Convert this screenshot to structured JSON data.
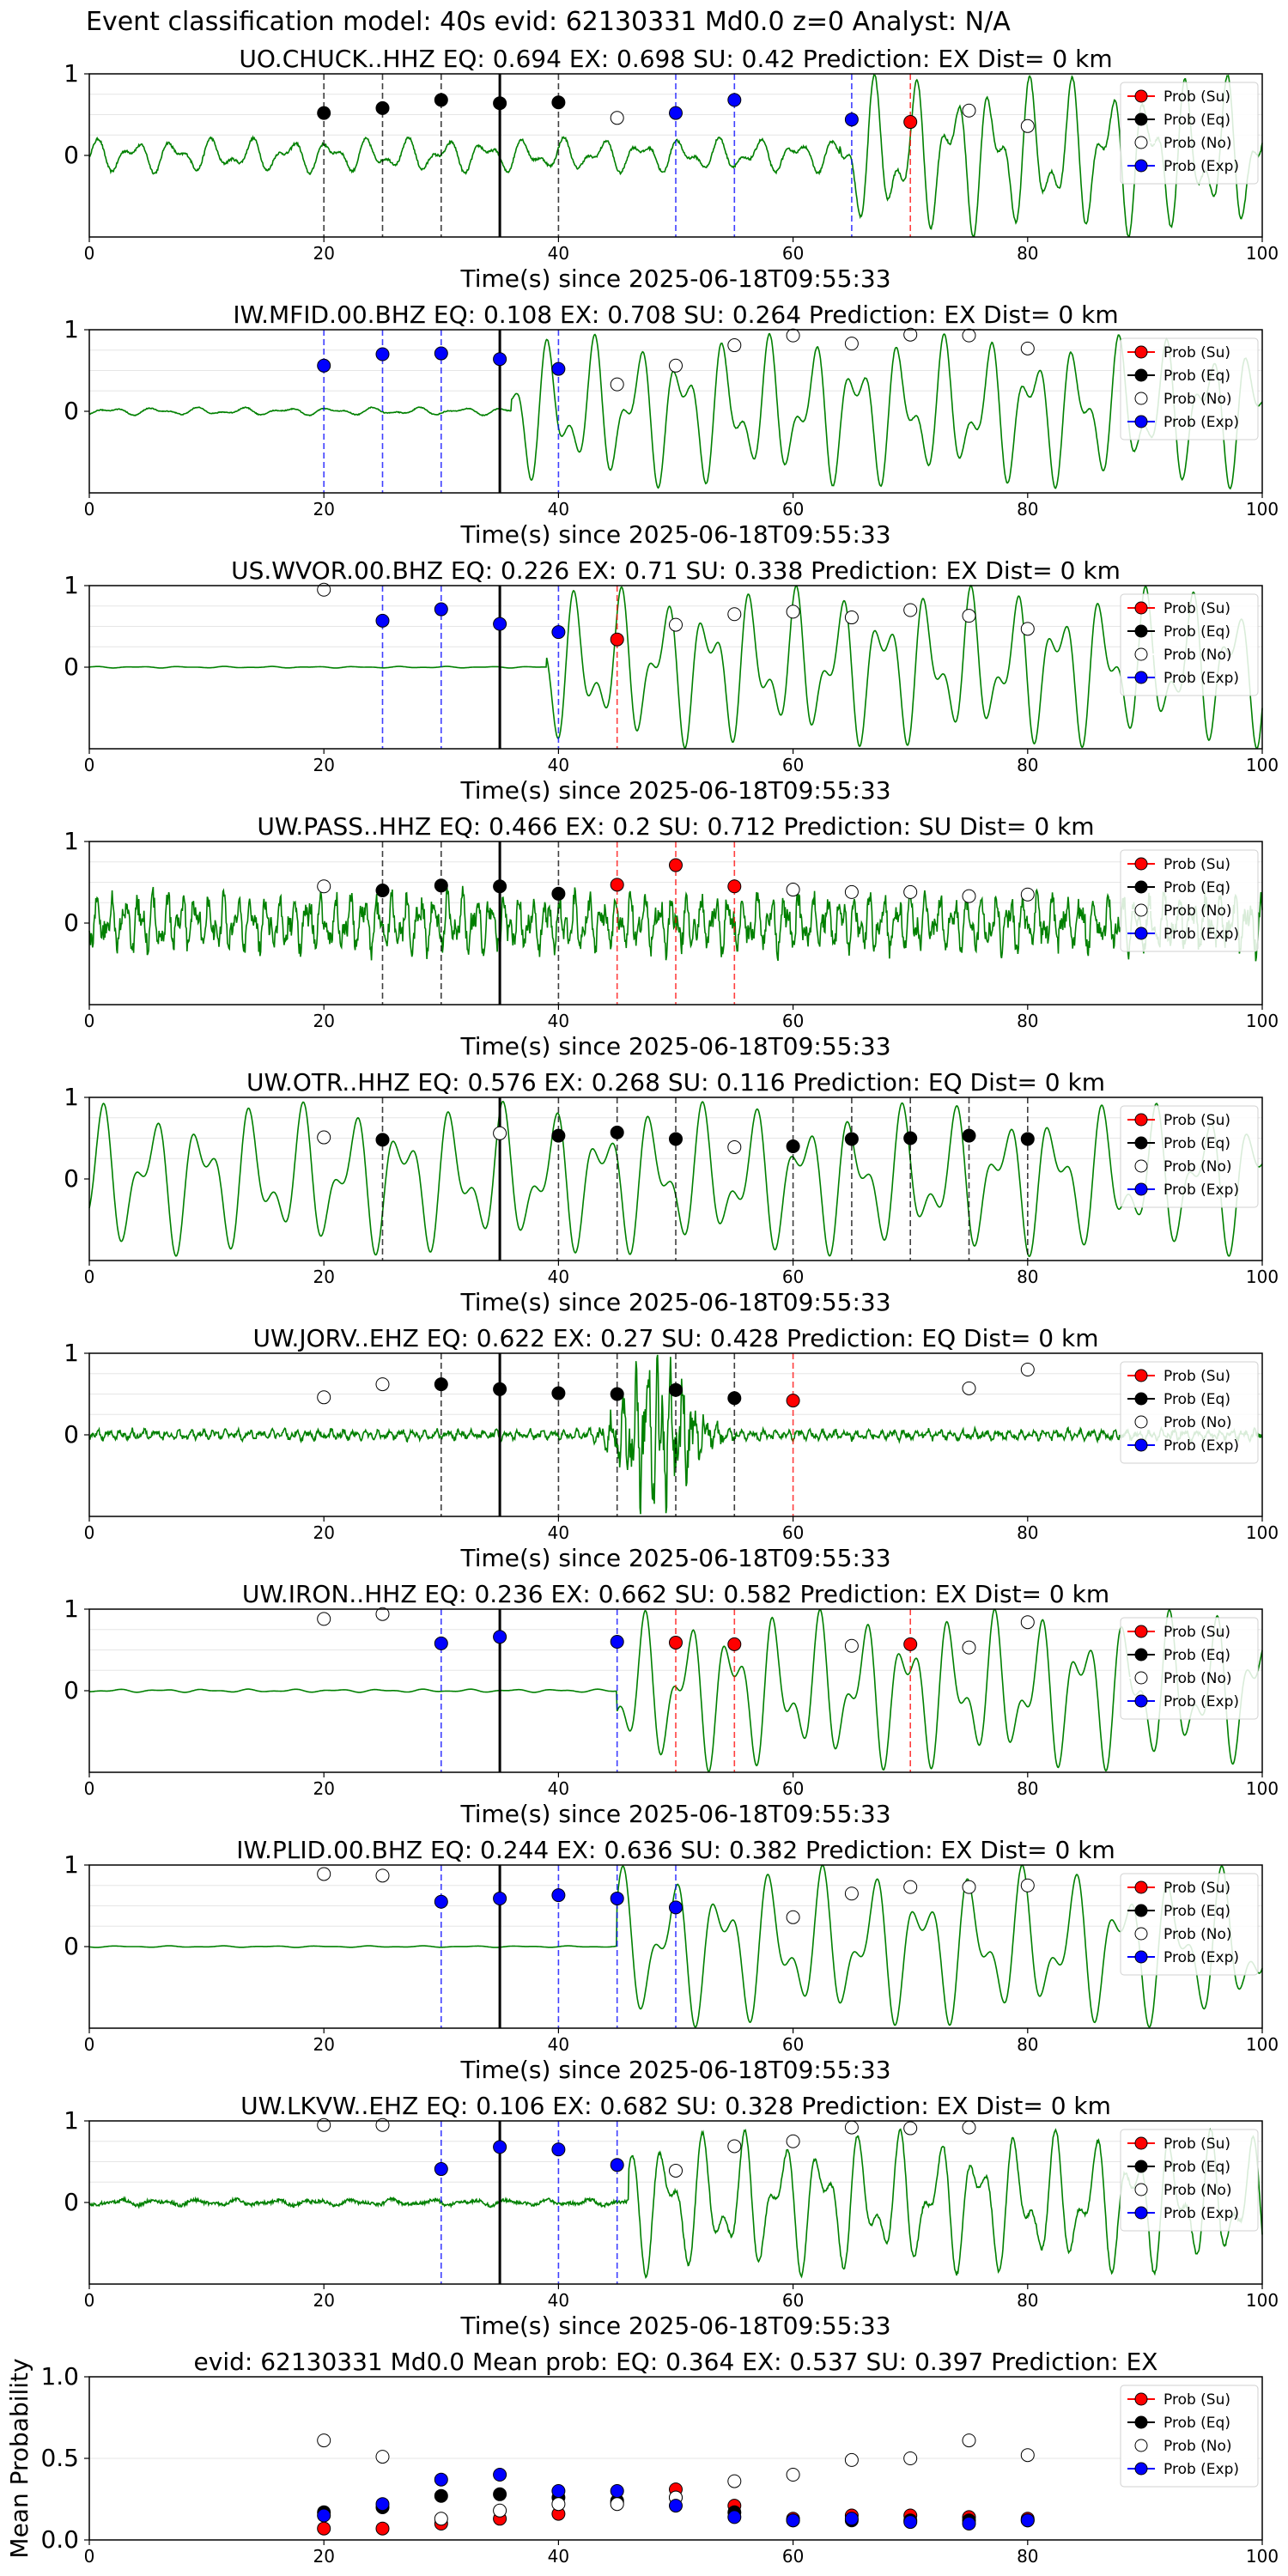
{
  "suptitle": "Event classification model: 40s evid: 62130331 Md0.0 z=0 Analyst: N/A",
  "legend": [
    "Prob (Su)",
    "Prob (Eq)",
    "Prob (No)",
    "Prob (Exp)"
  ],
  "colors": {
    "su": "#ff0000",
    "eq": "#000000",
    "no": "#ffffff",
    "exp": "#0000ff",
    "trace": "#008000",
    "arrival": "#000000"
  },
  "chart_data": [
    {
      "type": "line",
      "title": "UO.CHUCK..HHZ   EQ: 0.694  EX: 0.698  SU: 0.42   Prediction: EX    Dist= 0 km",
      "xlabel": "Time(s) since 2025-06-18T09:55:33",
      "xlim": [
        0,
        100
      ],
      "ylim": [
        -1,
        1
      ],
      "yticks": [
        0,
        1
      ],
      "xticks": [
        0,
        20,
        40,
        60,
        80,
        100
      ],
      "arrival_x": 35,
      "points": [
        {
          "x": 20,
          "y": 0.52,
          "cls": "eq"
        },
        {
          "x": 25,
          "y": 0.58,
          "cls": "eq"
        },
        {
          "x": 30,
          "y": 0.68,
          "cls": "eq"
        },
        {
          "x": 35,
          "y": 0.64,
          "cls": "eq"
        },
        {
          "x": 40,
          "y": 0.65,
          "cls": "eq"
        },
        {
          "x": 45,
          "y": 0.46,
          "cls": "no"
        },
        {
          "x": 50,
          "y": 0.52,
          "cls": "exp"
        },
        {
          "x": 55,
          "y": 0.68,
          "cls": "exp"
        },
        {
          "x": 65,
          "y": 0.44,
          "cls": "exp"
        },
        {
          "x": 70,
          "y": 0.41,
          "cls": "su"
        },
        {
          "x": 75,
          "y": 0.55,
          "cls": "no"
        },
        {
          "x": 80,
          "y": 0.36,
          "cls": "no"
        }
      ]
    },
    {
      "type": "line",
      "title": "IW.MFID.00.BHZ   EQ: 0.108  EX: 0.708  SU: 0.264   Prediction: EX    Dist= 0 km",
      "xlabel": "Time(s) since 2025-06-18T09:55:33",
      "xlim": [
        0,
        100
      ],
      "ylim": [
        -1,
        1
      ],
      "yticks": [
        0,
        1
      ],
      "xticks": [
        0,
        20,
        40,
        60,
        80,
        100
      ],
      "arrival_x": 35,
      "points": [
        {
          "x": 20,
          "y": 0.56,
          "cls": "exp"
        },
        {
          "x": 25,
          "y": 0.7,
          "cls": "exp"
        },
        {
          "x": 30,
          "y": 0.71,
          "cls": "exp"
        },
        {
          "x": 35,
          "y": 0.64,
          "cls": "exp"
        },
        {
          "x": 40,
          "y": 0.52,
          "cls": "exp"
        },
        {
          "x": 45,
          "y": 0.33,
          "cls": "no"
        },
        {
          "x": 50,
          "y": 0.56,
          "cls": "no"
        },
        {
          "x": 55,
          "y": 0.81,
          "cls": "no"
        },
        {
          "x": 60,
          "y": 0.93,
          "cls": "no"
        },
        {
          "x": 65,
          "y": 0.83,
          "cls": "no"
        },
        {
          "x": 70,
          "y": 0.94,
          "cls": "no"
        },
        {
          "x": 75,
          "y": 0.93,
          "cls": "no"
        },
        {
          "x": 80,
          "y": 0.77,
          "cls": "no"
        }
      ]
    },
    {
      "type": "line",
      "title": "US.WVOR.00.BHZ   EQ: 0.226  EX: 0.71  SU: 0.338   Prediction: EX    Dist= 0 km",
      "xlabel": "Time(s) since 2025-06-18T09:55:33",
      "xlim": [
        0,
        100
      ],
      "ylim": [
        -1,
        1
      ],
      "yticks": [
        0,
        1
      ],
      "xticks": [
        0,
        20,
        40,
        60,
        80,
        100
      ],
      "arrival_x": 35,
      "points": [
        {
          "x": 20,
          "y": 0.95,
          "cls": "no"
        },
        {
          "x": 25,
          "y": 0.57,
          "cls": "exp"
        },
        {
          "x": 30,
          "y": 0.71,
          "cls": "exp"
        },
        {
          "x": 35,
          "y": 0.53,
          "cls": "exp"
        },
        {
          "x": 40,
          "y": 0.43,
          "cls": "exp"
        },
        {
          "x": 45,
          "y": 0.34,
          "cls": "su"
        },
        {
          "x": 50,
          "y": 0.52,
          "cls": "no"
        },
        {
          "x": 55,
          "y": 0.65,
          "cls": "no"
        },
        {
          "x": 60,
          "y": 0.68,
          "cls": "no"
        },
        {
          "x": 65,
          "y": 0.61,
          "cls": "no"
        },
        {
          "x": 70,
          "y": 0.7,
          "cls": "no"
        },
        {
          "x": 75,
          "y": 0.63,
          "cls": "no"
        },
        {
          "x": 80,
          "y": 0.47,
          "cls": "no"
        }
      ]
    },
    {
      "type": "line",
      "title": "UW.PASS..HHZ   EQ: 0.466  EX: 0.2  SU: 0.712   Prediction: SU    Dist= 0 km",
      "xlabel": "Time(s) since 2025-06-18T09:55:33",
      "xlim": [
        0,
        100
      ],
      "ylim": [
        -1,
        1
      ],
      "yticks": [
        0,
        1
      ],
      "xticks": [
        0,
        20,
        40,
        60,
        80,
        100
      ],
      "arrival_x": 35,
      "points": [
        {
          "x": 20,
          "y": 0.45,
          "cls": "no"
        },
        {
          "x": 25,
          "y": 0.4,
          "cls": "eq"
        },
        {
          "x": 30,
          "y": 0.46,
          "cls": "eq"
        },
        {
          "x": 35,
          "y": 0.45,
          "cls": "eq"
        },
        {
          "x": 40,
          "y": 0.36,
          "cls": "eq"
        },
        {
          "x": 45,
          "y": 0.47,
          "cls": "su"
        },
        {
          "x": 50,
          "y": 0.71,
          "cls": "su"
        },
        {
          "x": 55,
          "y": 0.45,
          "cls": "su"
        },
        {
          "x": 60,
          "y": 0.41,
          "cls": "no"
        },
        {
          "x": 65,
          "y": 0.38,
          "cls": "no"
        },
        {
          "x": 70,
          "y": 0.38,
          "cls": "no"
        },
        {
          "x": 75,
          "y": 0.33,
          "cls": "no"
        },
        {
          "x": 80,
          "y": 0.35,
          "cls": "no"
        }
      ]
    },
    {
      "type": "line",
      "title": "UW.OTR..HHZ   EQ: 0.576  EX: 0.268  SU: 0.116   Prediction: EQ    Dist= 0 km",
      "xlabel": "Time(s) since 2025-06-18T09:55:33",
      "xlim": [
        0,
        100
      ],
      "ylim": [
        -1,
        1
      ],
      "yticks": [
        0,
        1
      ],
      "xticks": [
        0,
        20,
        40,
        60,
        80,
        100
      ],
      "arrival_x": 35,
      "points": [
        {
          "x": 20,
          "y": 0.51,
          "cls": "no"
        },
        {
          "x": 25,
          "y": 0.48,
          "cls": "eq"
        },
        {
          "x": 35,
          "y": 0.56,
          "cls": "no"
        },
        {
          "x": 40,
          "y": 0.53,
          "cls": "eq"
        },
        {
          "x": 45,
          "y": 0.57,
          "cls": "eq"
        },
        {
          "x": 50,
          "y": 0.49,
          "cls": "eq"
        },
        {
          "x": 55,
          "y": 0.39,
          "cls": "no"
        },
        {
          "x": 60,
          "y": 0.4,
          "cls": "eq"
        },
        {
          "x": 65,
          "y": 0.49,
          "cls": "eq"
        },
        {
          "x": 70,
          "y": 0.5,
          "cls": "eq"
        },
        {
          "x": 75,
          "y": 0.53,
          "cls": "eq"
        },
        {
          "x": 80,
          "y": 0.49,
          "cls": "eq"
        }
      ]
    },
    {
      "type": "line",
      "title": "UW.JORV..EHZ   EQ: 0.622  EX: 0.27  SU: 0.428   Prediction: EQ    Dist= 0 km",
      "xlabel": "Time(s) since 2025-06-18T09:55:33",
      "xlim": [
        0,
        100
      ],
      "ylim": [
        -1,
        1
      ],
      "yticks": [
        0,
        1
      ],
      "xticks": [
        0,
        20,
        40,
        60,
        80,
        100
      ],
      "arrival_x": 35,
      "points": [
        {
          "x": 20,
          "y": 0.46,
          "cls": "no"
        },
        {
          "x": 25,
          "y": 0.62,
          "cls": "no"
        },
        {
          "x": 30,
          "y": 0.62,
          "cls": "eq"
        },
        {
          "x": 35,
          "y": 0.56,
          "cls": "eq"
        },
        {
          "x": 40,
          "y": 0.51,
          "cls": "eq"
        },
        {
          "x": 45,
          "y": 0.5,
          "cls": "eq"
        },
        {
          "x": 50,
          "y": 0.55,
          "cls": "eq"
        },
        {
          "x": 55,
          "y": 0.45,
          "cls": "eq"
        },
        {
          "x": 60,
          "y": 0.42,
          "cls": "su"
        },
        {
          "x": 75,
          "y": 0.57,
          "cls": "no"
        },
        {
          "x": 80,
          "y": 0.8,
          "cls": "no"
        }
      ]
    },
    {
      "type": "line",
      "title": "UW.IRON..HHZ   EQ: 0.236  EX: 0.662  SU: 0.582   Prediction: EX    Dist= 0 km",
      "xlabel": "Time(s) since 2025-06-18T09:55:33",
      "xlim": [
        0,
        100
      ],
      "ylim": [
        -1,
        1
      ],
      "yticks": [
        0,
        1
      ],
      "xticks": [
        0,
        20,
        40,
        60,
        80,
        100
      ],
      "arrival_x": 35,
      "points": [
        {
          "x": 20,
          "y": 0.88,
          "cls": "no"
        },
        {
          "x": 25,
          "y": 0.94,
          "cls": "no"
        },
        {
          "x": 30,
          "y": 0.58,
          "cls": "exp"
        },
        {
          "x": 35,
          "y": 0.66,
          "cls": "exp"
        },
        {
          "x": 45,
          "y": 0.6,
          "cls": "exp"
        },
        {
          "x": 50,
          "y": 0.59,
          "cls": "su"
        },
        {
          "x": 55,
          "y": 0.57,
          "cls": "su"
        },
        {
          "x": 65,
          "y": 0.55,
          "cls": "no"
        },
        {
          "x": 70,
          "y": 0.57,
          "cls": "su"
        },
        {
          "x": 75,
          "y": 0.53,
          "cls": "no"
        },
        {
          "x": 80,
          "y": 0.84,
          "cls": "no"
        }
      ]
    },
    {
      "type": "line",
      "title": "IW.PLID.00.BHZ   EQ: 0.244  EX: 0.636  SU: 0.382   Prediction: EX    Dist= 0 km",
      "xlabel": "Time(s) since 2025-06-18T09:55:33",
      "xlim": [
        0,
        100
      ],
      "ylim": [
        -1,
        1
      ],
      "yticks": [
        0,
        1
      ],
      "xticks": [
        0,
        20,
        40,
        60,
        80,
        100
      ],
      "arrival_x": 35,
      "points": [
        {
          "x": 20,
          "y": 0.89,
          "cls": "no"
        },
        {
          "x": 25,
          "y": 0.87,
          "cls": "no"
        },
        {
          "x": 30,
          "y": 0.55,
          "cls": "exp"
        },
        {
          "x": 35,
          "y": 0.59,
          "cls": "exp"
        },
        {
          "x": 40,
          "y": 0.63,
          "cls": "exp"
        },
        {
          "x": 45,
          "y": 0.59,
          "cls": "exp"
        },
        {
          "x": 50,
          "y": 0.48,
          "cls": "exp"
        },
        {
          "x": 60,
          "y": 0.36,
          "cls": "no"
        },
        {
          "x": 65,
          "y": 0.65,
          "cls": "no"
        },
        {
          "x": 70,
          "y": 0.73,
          "cls": "no"
        },
        {
          "x": 75,
          "y": 0.73,
          "cls": "no"
        },
        {
          "x": 80,
          "y": 0.75,
          "cls": "no"
        }
      ]
    },
    {
      "type": "line",
      "title": "UW.LKVW..EHZ   EQ: 0.106  EX: 0.682  SU: 0.328   Prediction: EX    Dist= 0 km",
      "xlabel": "Time(s) since 2025-06-18T09:55:33",
      "xlim": [
        0,
        100
      ],
      "ylim": [
        -1,
        1
      ],
      "yticks": [
        0,
        1
      ],
      "xticks": [
        0,
        20,
        40,
        60,
        80,
        100
      ],
      "arrival_x": 35,
      "points": [
        {
          "x": 20,
          "y": 0.95,
          "cls": "no"
        },
        {
          "x": 25,
          "y": 0.95,
          "cls": "no"
        },
        {
          "x": 30,
          "y": 0.41,
          "cls": "exp"
        },
        {
          "x": 35,
          "y": 0.68,
          "cls": "exp"
        },
        {
          "x": 40,
          "y": 0.65,
          "cls": "exp"
        },
        {
          "x": 45,
          "y": 0.46,
          "cls": "exp"
        },
        {
          "x": 50,
          "y": 0.39,
          "cls": "no"
        },
        {
          "x": 55,
          "y": 0.69,
          "cls": "no"
        },
        {
          "x": 60,
          "y": 0.75,
          "cls": "no"
        },
        {
          "x": 65,
          "y": 0.92,
          "cls": "no"
        },
        {
          "x": 70,
          "y": 0.91,
          "cls": "no"
        },
        {
          "x": 75,
          "y": 0.92,
          "cls": "no"
        }
      ]
    },
    {
      "type": "scatter",
      "title": "evid: 62130331  Md0.0   Mean prob:   EQ: 0.364  EX: 0.537  SU: 0.397   Prediction: EX",
      "ylabel": "Mean Probability",
      "xlim": [
        0,
        100
      ],
      "ylim": [
        0,
        1
      ],
      "yticks": [
        0,
        0.5,
        1
      ],
      "ytick_labels": [
        "0.0",
        "0.5",
        "1.0"
      ],
      "xticks": [
        0,
        20,
        40,
        60,
        80,
        100
      ],
      "x": [
        20,
        25,
        30,
        35,
        40,
        45,
        50,
        55,
        60,
        65,
        70,
        75,
        80
      ],
      "series": [
        {
          "name": "Prob (Su)",
          "cls": "su",
          "values": [
            0.07,
            0.07,
            0.1,
            0.13,
            0.16,
            0.23,
            0.31,
            0.21,
            0.13,
            0.15,
            0.15,
            0.14,
            0.13
          ]
        },
        {
          "name": "Prob (Eq)",
          "cls": "eq",
          "values": [
            0.17,
            0.2,
            0.27,
            0.28,
            0.26,
            0.24,
            0.26,
            0.17,
            0.12,
            0.12,
            0.12,
            0.12,
            0.12
          ]
        },
        {
          "name": "Prob (No)",
          "cls": "no",
          "values": [
            0.61,
            0.51,
            0.13,
            0.18,
            0.22,
            0.22,
            0.26,
            0.36,
            0.4,
            0.49,
            0.5,
            0.61,
            0.52
          ]
        },
        {
          "name": "Prob (Exp)",
          "cls": "exp",
          "values": [
            0.15,
            0.22,
            0.37,
            0.4,
            0.3,
            0.3,
            0.21,
            0.14,
            0.12,
            0.13,
            0.11,
            0.1,
            0.12
          ]
        }
      ]
    }
  ]
}
